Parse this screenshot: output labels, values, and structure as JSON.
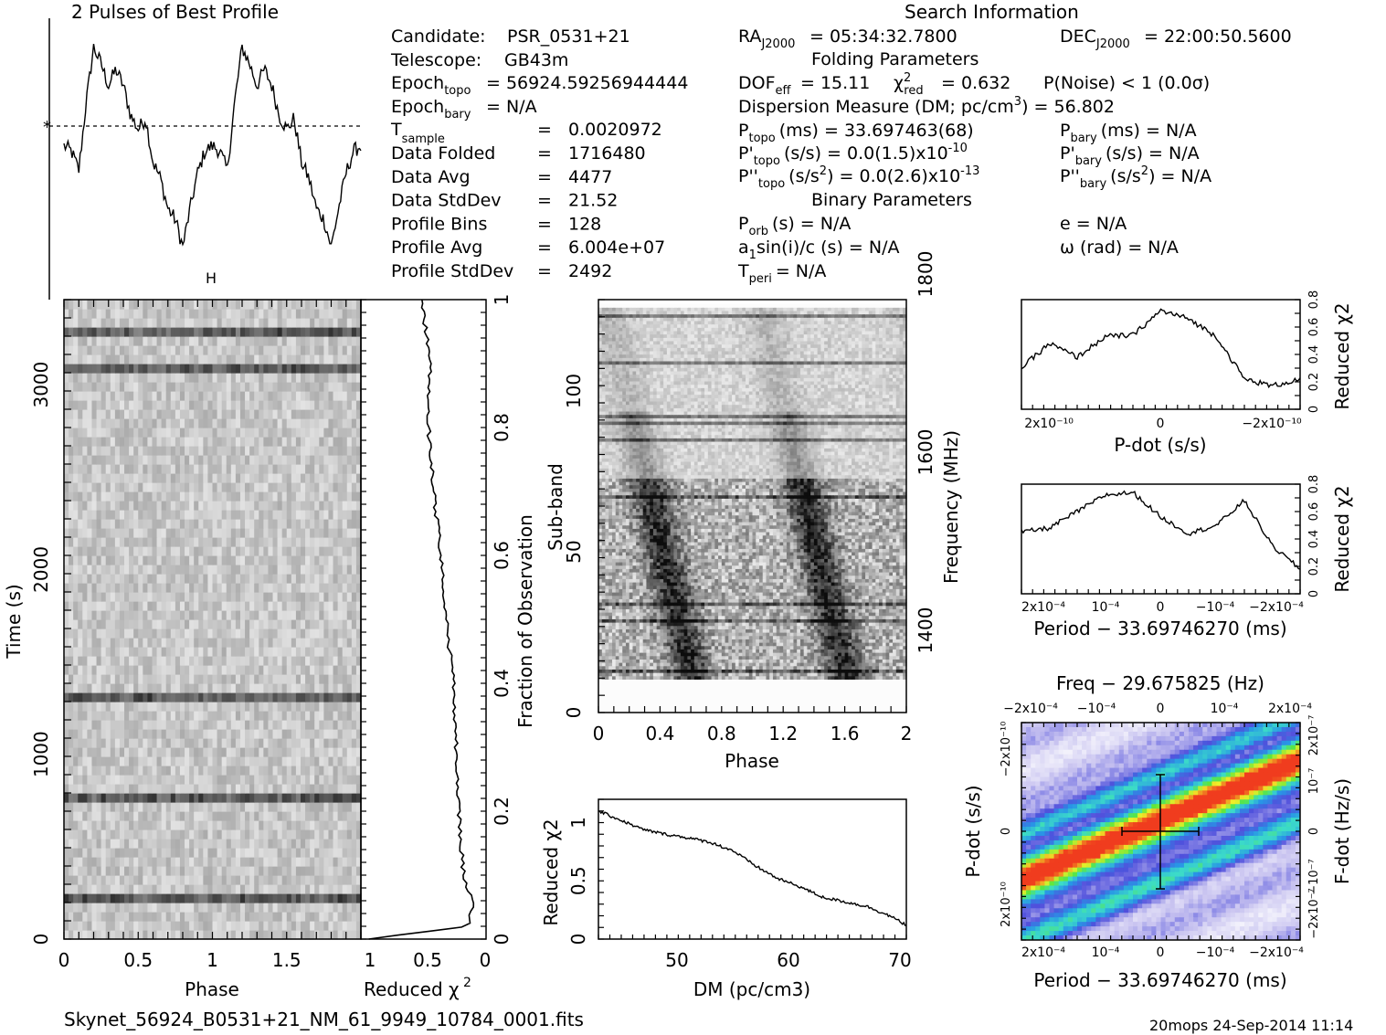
{
  "profile": {
    "title": "2 Pulses of Best Profile"
  },
  "search": {
    "title": "Search Information",
    "candidate_label": "Candidate:",
    "candidate_value": "PSR_0531+21",
    "telescope_label": "Telescope:",
    "telescope_value": "GB43m",
    "epoch_topo_label": "Epoch",
    "epoch_topo_sub": "topo",
    "epoch_topo_value": "= 56924.59256944444",
    "epoch_bary_label": "Epoch",
    "epoch_bary_sub": "bary",
    "epoch_bary_value": "= N/A",
    "tsample_label": "T",
    "tsample_sub": "sample",
    "tsample_eq": "=",
    "tsample_value": "0.0020972",
    "rows": [
      {
        "label": "Data Folded",
        "eq": "=",
        "value": "1716480"
      },
      {
        "label": "Data Avg",
        "eq": "=",
        "value": "4477"
      },
      {
        "label": "Data StdDev",
        "eq": "=",
        "value": "21.52"
      },
      {
        "label": "Profile Bins",
        "eq": "=",
        "value": "128"
      },
      {
        "label": "Profile Avg",
        "eq": "=",
        "value": "6.004e+07"
      },
      {
        "label": "Profile StdDev",
        "eq": "=",
        "value": "2492"
      }
    ],
    "ra_label": "RA",
    "ra_sub": "J2000",
    "ra_value": "= 05:34:32.7800",
    "dec_label": "DEC",
    "dec_sub": "J2000",
    "dec_value": "= 22:00:50.5600",
    "folding_title": "Folding Parameters",
    "dof_label": "DOF",
    "dof_sub": "eff",
    "dof_value": "= 15.11",
    "chi_label": "χ",
    "chi_sup": "2",
    "chi_sub": "red",
    "chi_value": "= 0.632",
    "pnoise": "P(Noise) < 1   (0.0σ)",
    "dm_text": "Dispersion Measure (DM; pc/cm",
    "dm_sup": "3",
    "dm_value": ") = 56.802",
    "ptopo_label": "P",
    "ptopo_sub": "topo",
    "ptopo_value": "(ms) =  33.697463(68)",
    "pbary_label": "P",
    "pbary_sub": "bary",
    "pbary_value": "(ms) = N/A",
    "pdtopo_label": "P'",
    "pdtopo_sub": "topo",
    "pdtopo_value": "(s/s) = 0.0(1.5)x10",
    "pdtopo_exp": "-10",
    "pdbary_label": "P'",
    "pdbary_sub": "bary",
    "pdbary_value": "(s/s) = N/A",
    "pddtopo_label": "P''",
    "pddtopo_sub": "topo",
    "pddtopo_value": "(s/s",
    "pddtopo_sup": "2",
    "pddtopo_value2": ") = 0.0(2.6)x10",
    "pddtopo_exp": "-13",
    "pddbary_label": "P''",
    "pddbary_sub": "bary",
    "pddbary_value": "(s/s",
    "pddbary_sup": "2",
    "pddbary_value2": ") = N/A",
    "binary_title": "Binary Parameters",
    "porb_label": "P",
    "porb_sub": "orb",
    "porb_value": "(s) = N/A",
    "a1_label": "a",
    "a1_sub": "1",
    "a1_value": "sin(i)/c (s) = N/A",
    "tperi_label": "T",
    "tperi_sub": "peri",
    "tperi_value": "= N/A",
    "e_text": "e = N/A",
    "omega_text": "ω (rad) = N/A"
  },
  "footer": {
    "filename": "Skynet_56924_B0531+21_NM_61_9949_10784_0001.fits",
    "stamp": "20mops 24-Sep-2014 11:14"
  },
  "chart_data": [
    {
      "type": "line",
      "panel": "pulse-profile",
      "title": "2 Pulses of Best Profile",
      "x": [
        0.0,
        0.05,
        0.1,
        0.15,
        0.2,
        0.25,
        0.3,
        0.35,
        0.4,
        0.45,
        0.5,
        0.55,
        0.6,
        0.65,
        0.7,
        0.75,
        0.8,
        0.85,
        0.9,
        0.95,
        1.0,
        1.05,
        1.1,
        1.15,
        1.2,
        1.25,
        1.3,
        1.35,
        1.4,
        1.45,
        1.5,
        1.55,
        1.6,
        1.65,
        1.7,
        1.75,
        1.8,
        1.85,
        1.9,
        1.95,
        2.0
      ],
      "values": [
        -0.4,
        -0.6,
        -1.3,
        1.2,
        3.2,
        2.6,
        1.8,
        2.4,
        1.8,
        0.7,
        0.2,
        0.6,
        -1.0,
        -1.6,
        -2.7,
        -3.1,
        -4.1,
        -2.7,
        -1.4,
        -0.6,
        -0.4,
        -0.6,
        -1.3,
        1.2,
        3.2,
        2.6,
        1.8,
        2.4,
        1.8,
        0.7,
        0.2,
        0.6,
        -1.0,
        -1.6,
        -2.7,
        -3.1,
        -4.1,
        -2.7,
        -1.4,
        -0.6,
        -0.4
      ],
      "ylim": [
        -4.5,
        3.6
      ],
      "error_bar": "H"
    },
    {
      "type": "heatmap",
      "panel": "time-phase",
      "xlabel": "Phase",
      "ylabel": "Time (s)",
      "x_ticks": [
        "0",
        "0.5",
        "1",
        "1.5"
      ],
      "y_ticks": [
        "0",
        "1000",
        "2000",
        "3000"
      ],
      "xlim": [
        0,
        2
      ],
      "ylim": [
        0,
        3460
      ],
      "dark_rows_time_s": [
        220,
        780,
        1300,
        3070,
        3300
      ],
      "colormap": "grayscale"
    },
    {
      "type": "line",
      "panel": "reduced-chi2-vs-fraction",
      "xlabel": "Reduced χ2",
      "ylabel": "Fraction of Observation",
      "x_ticks": [
        "1",
        "0.5",
        "0"
      ],
      "y_ticks": [
        "0",
        "0.2",
        "0.4",
        "0.6",
        "0.8",
        "1"
      ],
      "xlim": [
        1,
        0
      ],
      "ylim": [
        0,
        1
      ],
      "fraction": [
        0.0,
        0.02,
        0.05,
        0.1,
        0.15,
        0.2,
        0.3,
        0.4,
        0.5,
        0.6,
        0.7,
        0.8,
        0.9,
        0.95,
        1.0
      ],
      "reduced_chi2": [
        0.95,
        0.15,
        0.1,
        0.18,
        0.2,
        0.22,
        0.24,
        0.26,
        0.32,
        0.36,
        0.42,
        0.46,
        0.45,
        0.48,
        0.52
      ]
    },
    {
      "type": "heatmap",
      "panel": "subband-phase",
      "xlabel": "Phase",
      "ylabel": "Sub-band",
      "ylabel2": "Frequency (MHz)",
      "x_ticks": [
        "0",
        "0.4",
        "0.8",
        "1.2",
        "1.6",
        "2"
      ],
      "y_ticks": [
        "0",
        "50",
        "100"
      ],
      "y2_ticks": [
        "1400",
        "1600",
        "1800"
      ],
      "xlim": [
        0,
        2
      ],
      "ylim": [
        0,
        122
      ],
      "colormap": "grayscale"
    },
    {
      "type": "line",
      "panel": "reduced-chi2-vs-dm",
      "xlabel": "DM (pc/cm3)",
      "ylabel": "Reduced χ2",
      "x_ticks": [
        "50",
        "60",
        "70"
      ],
      "y_ticks": [
        "0",
        "0.5",
        "1"
      ],
      "xlim": [
        43,
        70.5
      ],
      "ylim": [
        0,
        1.2
      ],
      "x": [
        43,
        45,
        47,
        49,
        51,
        53,
        55,
        57,
        59,
        61,
        63,
        65,
        67,
        69,
        70.5
      ],
      "values": [
        1.1,
        1.02,
        0.94,
        0.9,
        0.87,
        0.83,
        0.76,
        0.63,
        0.52,
        0.45,
        0.36,
        0.32,
        0.28,
        0.2,
        0.12
      ]
    },
    {
      "type": "line",
      "panel": "pdot-chi2",
      "xlabel": "P-dot (s/s)",
      "ylabel": "Reduced χ2",
      "x_ticks": [
        "2x10-10",
        "0",
        "-2x10-10"
      ],
      "y_ticks": [
        "0",
        "0.2",
        "0.4",
        "0.6",
        "0.8"
      ],
      "xlim": [
        2.5e-10,
        -2.5e-10
      ],
      "ylim": [
        0,
        0.8
      ],
      "x": [
        2.5e-10,
        2e-10,
        1.5e-10,
        1e-10,
        5e-11,
        0,
        -5e-11,
        -1e-10,
        -1.5e-10,
        -2e-10,
        -2.5e-10
      ],
      "values": [
        0.3,
        0.48,
        0.38,
        0.53,
        0.54,
        0.72,
        0.66,
        0.53,
        0.22,
        0.17,
        0.22
      ]
    },
    {
      "type": "line",
      "panel": "period-chi2",
      "xlabel": "Period − 33.69746270 (ms)",
      "ylabel": "Reduced χ2",
      "x_ticks": [
        "2x10-4",
        "10-4",
        "0",
        "-10-4",
        "-2x10-4"
      ],
      "y_ticks": [
        "0",
        "0.2",
        "0.4",
        "0.6",
        "0.8"
      ],
      "xlim": [
        0.00025,
        -0.00025
      ],
      "ylim": [
        0,
        0.8
      ],
      "x": [
        0.00025,
        0.0002,
        0.00015,
        0.0001,
        5e-05,
        0,
        -5e-05,
        -0.0001,
        -0.00015,
        -0.0002,
        -0.00025
      ],
      "values": [
        0.45,
        0.48,
        0.6,
        0.72,
        0.74,
        0.56,
        0.44,
        0.5,
        0.68,
        0.35,
        0.18
      ]
    },
    {
      "type": "heatmap",
      "panel": "period-pdot",
      "title": "Freq − 29.675825 (Hz)",
      "xlabel": "Period − 33.69746270 (ms)",
      "ylabel": "P-dot (s/s)",
      "ylabel2": "F-dot (Hz/s)",
      "x_ticks": [
        "2x10-4",
        "10-4",
        "0",
        "-10-4",
        "-2x10-4"
      ],
      "top_ticks": [
        "-2x10-4",
        "-10-4",
        "0",
        "10-4",
        "2x10-4"
      ],
      "y_ticks": [
        "2x10-10",
        "0",
        "-2x10-10"
      ],
      "y2_ticks": [
        "-2x10-7",
        "-10-7",
        "0",
        "10-7",
        "2x10-7"
      ],
      "colormap": "rainbow"
    }
  ]
}
